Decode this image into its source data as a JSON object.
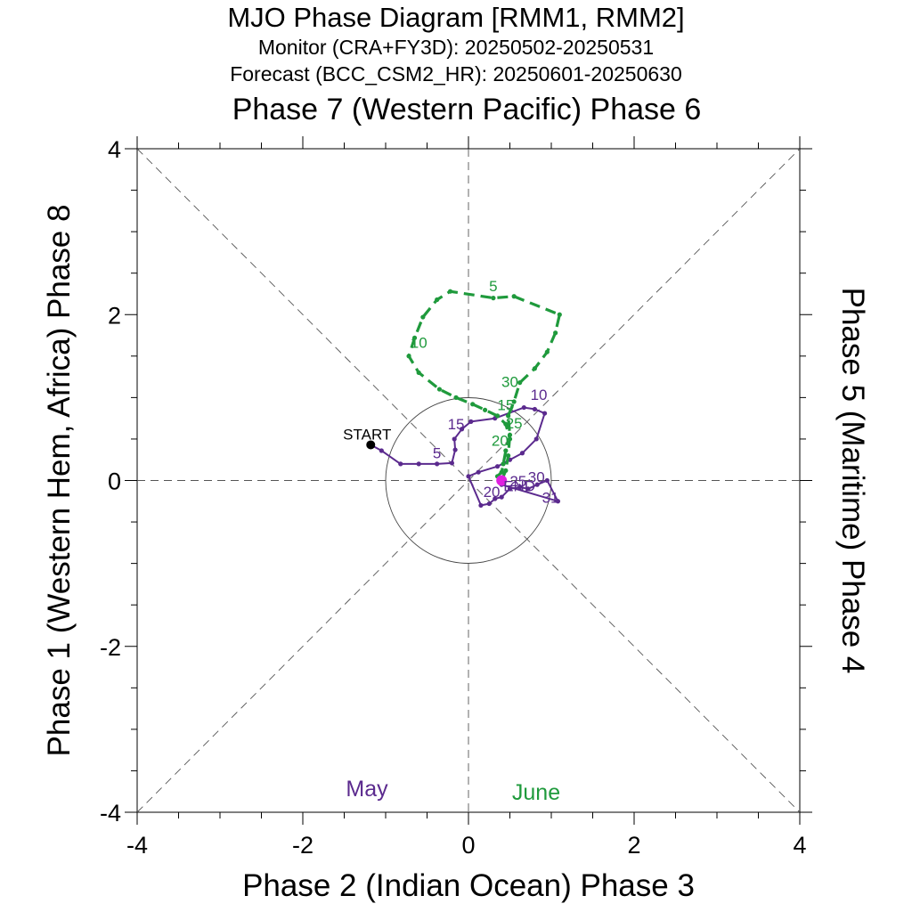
{
  "titles": {
    "main": "MJO Phase Diagram [RMM1, RMM2]",
    "monitor": "Monitor (CRA+FY3D): 20250502-20250531",
    "forecast": "Forecast (BCC_CSM2_HR): 20250601-20250630",
    "top_axis": "Phase 7 (Western Pacific) Phase 6"
  },
  "chart_data": {
    "type": "line",
    "xlabel": "Phase 2 (Indian Ocean) Phase 3",
    "ylabel": "Phase 1 (Western Hem, Africa) Phase 8",
    "right_label": "Phase 5 (Maritime) Phase 4",
    "xlim": [
      -4,
      4
    ],
    "ylim": [
      -4,
      4
    ],
    "xticks": [
      -4,
      -2,
      0,
      2,
      4
    ],
    "yticks": [
      -4,
      -2,
      0,
      2,
      4
    ],
    "xtick_labels": [
      "-4",
      "-2",
      "0",
      "2",
      "4"
    ],
    "ytick_labels": [
      "-4",
      "-2",
      "0",
      "2",
      "4"
    ],
    "unit_circle_radius": 1,
    "start_label": "START",
    "end_label": "END",
    "series": [
      {
        "name": "May",
        "color": "#5b2a8e",
        "style": "solid",
        "points": [
          [
            -1.18,
            0.43
          ],
          [
            -1.05,
            0.36
          ],
          [
            -0.82,
            0.2
          ],
          [
            -0.6,
            0.2
          ],
          [
            -0.38,
            0.2
          ],
          [
            -0.2,
            0.21
          ],
          [
            -0.16,
            0.37
          ],
          [
            -0.17,
            0.5
          ],
          [
            -0.08,
            0.62
          ],
          [
            0.03,
            0.71
          ],
          [
            0.32,
            0.75
          ],
          [
            0.67,
            0.88
          ],
          [
            0.8,
            0.86
          ],
          [
            0.92,
            0.81
          ],
          [
            0.82,
            0.5
          ],
          [
            0.65,
            0.33
          ],
          [
            0.5,
            0.25
          ],
          [
            0.35,
            0.17
          ],
          [
            0.12,
            0.1
          ],
          [
            0.0,
            0.05
          ],
          [
            0.15,
            -0.3
          ],
          [
            0.25,
            -0.28
          ],
          [
            0.32,
            -0.22
          ],
          [
            0.4,
            -0.2
          ],
          [
            0.5,
            -0.1
          ],
          [
            0.62,
            -0.08
          ],
          [
            0.72,
            -0.1
          ],
          [
            0.83,
            -0.05
          ],
          [
            0.95,
            0.0
          ],
          [
            1.08,
            -0.25
          ],
          [
            0.4,
            -0.05
          ]
        ],
        "day_labels": [
          {
            "day": "5",
            "x": -0.38,
            "y": 0.27
          },
          {
            "day": "10",
            "x": 0.85,
            "y": 0.97
          },
          {
            "day": "15",
            "x": -0.15,
            "y": 0.62
          },
          {
            "day": "20",
            "x": 0.28,
            "y": -0.2
          },
          {
            "day": "25",
            "x": 0.6,
            "y": -0.07
          },
          {
            "day": "30",
            "x": 0.82,
            "y": -0.02
          },
          {
            "day": "31",
            "x": 0.99,
            "y": -0.27
          }
        ]
      },
      {
        "name": "June",
        "color": "#1f9a3c",
        "style": "dashed",
        "points": [
          [
            0.4,
            0.0
          ],
          [
            0.45,
            0.12
          ],
          [
            0.48,
            0.3
          ],
          [
            0.5,
            0.55
          ],
          [
            0.48,
            0.78
          ],
          [
            0.55,
            0.95
          ],
          [
            0.62,
            1.18
          ],
          [
            0.8,
            1.35
          ],
          [
            0.95,
            1.55
          ],
          [
            1.05,
            1.78
          ],
          [
            1.1,
            2.0
          ],
          [
            0.55,
            2.22
          ],
          [
            0.3,
            2.2
          ],
          [
            -0.22,
            2.28
          ],
          [
            -0.38,
            2.18
          ],
          [
            -0.55,
            1.97
          ],
          [
            -0.65,
            1.72
          ],
          [
            -0.72,
            1.5
          ],
          [
            -0.6,
            1.3
          ],
          [
            -0.35,
            1.1
          ],
          [
            -0.15,
            1.0
          ],
          [
            0.05,
            0.92
          ],
          [
            0.2,
            0.85
          ],
          [
            0.35,
            0.78
          ],
          [
            0.45,
            0.68
          ],
          [
            0.5,
            0.5
          ],
          [
            0.45,
            0.36
          ],
          [
            0.42,
            0.2
          ],
          [
            0.4,
            0.1
          ],
          [
            0.35,
            0.05
          ]
        ],
        "day_labels": [
          {
            "day": "5",
            "x": 0.3,
            "y": 2.28
          },
          {
            "day": "10",
            "x": -0.6,
            "y": 1.6
          },
          {
            "day": "15",
            "x": 0.45,
            "y": 0.85
          },
          {
            "day": "20",
            "x": 0.38,
            "y": 0.42
          },
          {
            "day": "25",
            "x": 0.55,
            "y": 0.63
          },
          {
            "day": "30",
            "x": 0.5,
            "y": 1.13
          }
        ]
      }
    ],
    "legend": [
      {
        "label": "May",
        "color": "#5b2a8e"
      },
      {
        "label": "June",
        "color": "#1f9a3c"
      }
    ],
    "end_marker_color": "#e020e0",
    "start_marker_color": "#000000"
  }
}
